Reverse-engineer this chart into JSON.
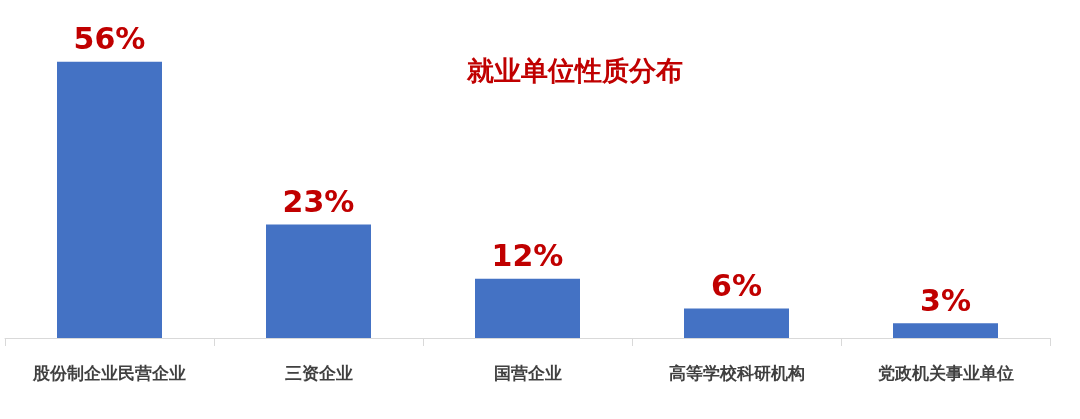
{
  "chart_data": {
    "type": "bar",
    "title": "就业单位性质分布",
    "categories": [
      "股份制企业民营企业",
      "三资企业",
      "国营企业",
      "高等学校科研机构",
      "党政机关事业单位"
    ],
    "values": [
      56,
      23,
      12,
      6,
      3
    ],
    "value_labels": [
      "56%",
      "23%",
      "12%",
      "6%",
      "3%"
    ],
    "color": "#4472c4"
  }
}
